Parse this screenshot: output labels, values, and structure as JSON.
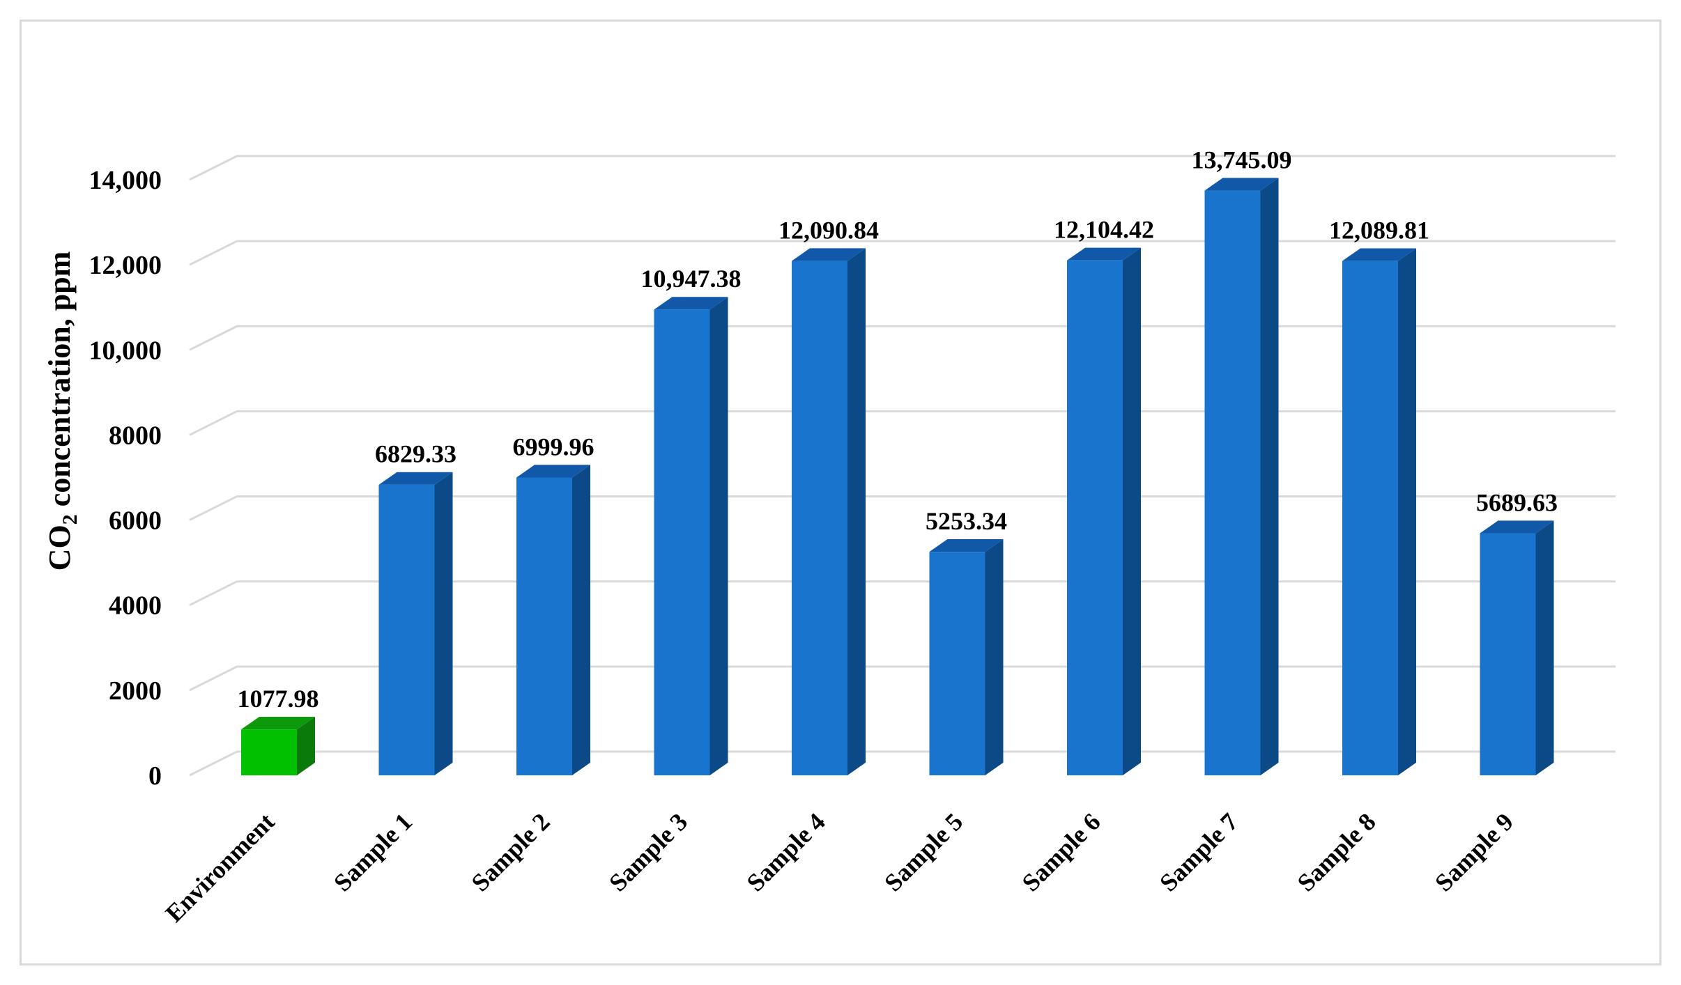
{
  "chart_data": {
    "type": "bar",
    "title": "",
    "xlabel": "",
    "ylabel": {
      "prefix": "CO",
      "subscript": "2",
      "suffix": " concentration, ppm"
    },
    "ylim": [
      0,
      14000
    ],
    "y_ticks": [
      0,
      2000,
      4000,
      6000,
      8000,
      10000,
      12000,
      14000
    ],
    "y_tick_labels": [
      "0",
      "2000",
      "4000",
      "6000",
      "8000",
      "10,000",
      "12,000",
      "14,000"
    ],
    "categories": [
      "Environment",
      "Sample 1",
      "Sample 2",
      "Sample 3",
      "Sample 4",
      "Sample 5",
      "Sample 6",
      "Sample 7",
      "Sample 8",
      "Sample 9"
    ],
    "values": [
      1077.98,
      6829.33,
      6999.96,
      10947.38,
      12090.84,
      5253.34,
      12104.42,
      13745.09,
      12089.81,
      5689.63
    ],
    "data_labels": [
      "1077.98",
      "6829.33",
      "6999.96",
      "10,947.38",
      "12,090.84",
      "5253.34",
      "12,104.42",
      "13,745.09",
      "12,089.81",
      "5689.63"
    ],
    "bar_colors": [
      "#00c000",
      "#1874cd",
      "#1874cd",
      "#1874cd",
      "#1874cd",
      "#1874cd",
      "#1874cd",
      "#1874cd",
      "#1874cd",
      "#1874cd"
    ],
    "bar_side_colors": [
      "#0a7a0a",
      "#0b4a86",
      "#0b4a86",
      "#0b4a86",
      "#0b4a86",
      "#0b4a86",
      "#0b4a86",
      "#0b4a86",
      "#0b4a86",
      "#0b4a86"
    ],
    "bar_top_colors": [
      "#0c9a0c",
      "#1159a8",
      "#1159a8",
      "#1159a8",
      "#1159a8",
      "#1159a8",
      "#1159a8",
      "#1159a8",
      "#1159a8",
      "#1159a8"
    ],
    "style": "3d-clustered-column",
    "grid": true,
    "legend": "none"
  }
}
